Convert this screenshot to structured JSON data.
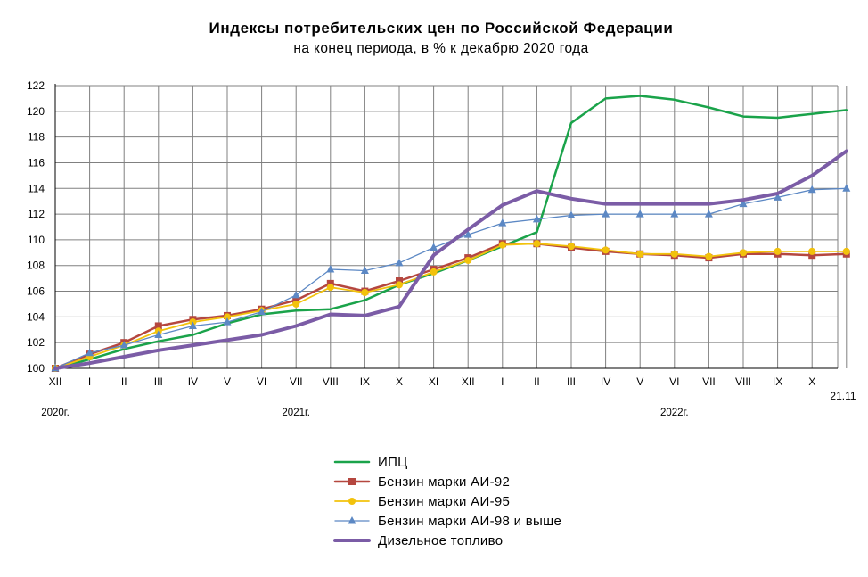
{
  "chart_data": {
    "type": "line",
    "title": "Индексы потребительских цен по Российской Федерации",
    "subtitle": "на конец периода, в % к декабрю 2020 года",
    "x_labels": [
      "XII",
      "I",
      "II",
      "III",
      "IV",
      "V",
      "VI",
      "VII",
      "VIII",
      "IX",
      "X",
      "XI",
      "XII",
      "I",
      "II",
      "III",
      "IV",
      "V",
      "VI",
      "VII",
      "VIII",
      "IX",
      "X",
      "21.11"
    ],
    "year_labels": [
      {
        "label": "2020г.",
        "at_index": 0
      },
      {
        "label": "2021г.",
        "at_index": 7
      },
      {
        "label": "2022г.",
        "at_index": 18
      }
    ],
    "ylim": [
      100,
      122
    ],
    "yticks": [
      100,
      102,
      104,
      106,
      108,
      110,
      112,
      114,
      116,
      118,
      120,
      122
    ],
    "grid": true,
    "legend_position": "bottom",
    "series": [
      {
        "name": "ИПЦ",
        "color": "#1aa34a",
        "marker": "none",
        "width": 2.5,
        "values": [
          100.0,
          100.7,
          101.5,
          102.1,
          102.6,
          103.5,
          104.2,
          104.5,
          104.6,
          105.3,
          106.5,
          107.4,
          108.4,
          109.5,
          110.6,
          119.1,
          121.0,
          121.2,
          120.9,
          120.3,
          119.6,
          119.5,
          119.8,
          120.1
        ]
      },
      {
        "name": "Бензин марки АИ-92",
        "color": "#b5473f",
        "marker": "square",
        "width": 2.5,
        "values": [
          100.0,
          101.1,
          102.0,
          103.3,
          103.8,
          104.1,
          104.6,
          105.3,
          106.6,
          106.0,
          106.8,
          107.7,
          108.6,
          109.7,
          109.7,
          109.4,
          109.1,
          108.9,
          108.8,
          108.6,
          108.9,
          108.9,
          108.8,
          108.9
        ]
      },
      {
        "name": "Бензин марки АИ-95",
        "color": "#f2c20c",
        "marker": "circle",
        "width": 1.8,
        "values": [
          100.0,
          100.9,
          101.8,
          102.9,
          103.6,
          104.0,
          104.5,
          105.0,
          106.3,
          105.9,
          106.5,
          107.5,
          108.4,
          109.6,
          109.7,
          109.5,
          109.2,
          108.9,
          108.9,
          108.7,
          109.0,
          109.1,
          109.1,
          109.1
        ]
      },
      {
        "name": "Бензин марки АИ-98 и выше",
        "color": "#5c88c4",
        "marker": "triangle",
        "width": 1.3,
        "values": [
          100.0,
          101.2,
          101.8,
          102.6,
          103.3,
          103.6,
          104.4,
          105.7,
          107.7,
          107.6,
          108.2,
          109.4,
          110.4,
          111.3,
          111.6,
          111.9,
          112.0,
          112.0,
          112.0,
          112.0,
          112.8,
          113.3,
          113.9,
          114.0
        ]
      },
      {
        "name": "Дизельное топливо",
        "color": "#7b5ca6",
        "marker": "none",
        "width": 4,
        "values": [
          100.0,
          100.4,
          100.9,
          101.4,
          101.8,
          102.2,
          102.6,
          103.3,
          104.2,
          104.1,
          104.8,
          108.8,
          110.8,
          112.7,
          113.8,
          113.2,
          112.8,
          112.8,
          112.8,
          112.8,
          113.1,
          113.6,
          115.0,
          116.9
        ]
      }
    ]
  }
}
